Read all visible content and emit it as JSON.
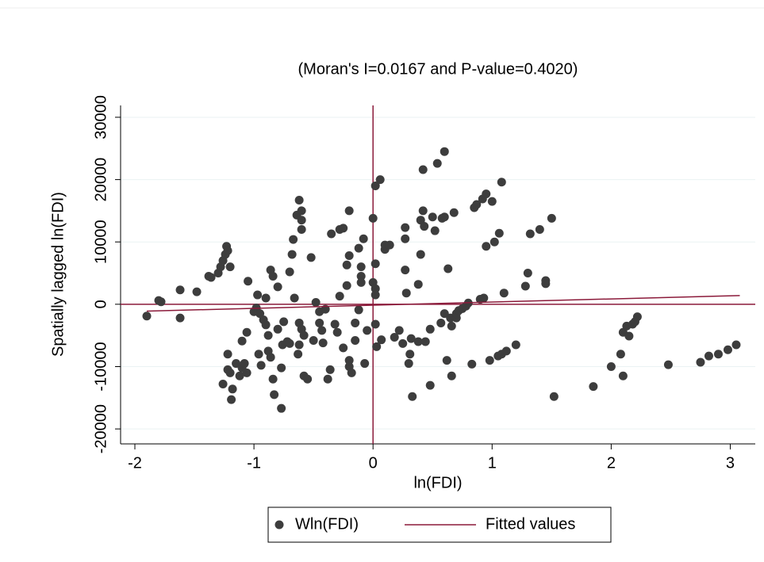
{
  "chart_data": {
    "type": "scatter",
    "title": "(Moran's I=0.0167 and P-value=0.4020)",
    "x_label": "ln(FDI)",
    "y_label": "Spatially lagged ln(FDI)",
    "xlim": [
      -2.12,
      3.21
    ],
    "ylim": [
      -22400,
      31900
    ],
    "xticks": [
      -2,
      -1,
      0,
      1,
      2,
      3
    ],
    "yticks": [
      -20000,
      -10000,
      0,
      10000,
      20000,
      30000
    ],
    "grid": true,
    "reference_lines": {
      "x": 0,
      "y": 0,
      "color": "#8b1a3a"
    },
    "legend": "bottom",
    "series": [
      {
        "name": "Wln(FDI)",
        "type": "scatter",
        "color": "#3d3d3d",
        "x": [
          -1.9,
          -1.8,
          -1.78,
          -1.62,
          -1.62,
          -1.48,
          -1.38,
          -1.36,
          -1.3,
          -1.28,
          -1.26,
          -1.24,
          -1.23,
          -1.22,
          -1.2,
          -1.22,
          -1.22,
          -1.2,
          -1.18,
          -1.19,
          -1.26,
          -1.15,
          -1.12,
          -1.1,
          -1.08,
          -1.06,
          -1.1,
          -1.06,
          -1.05,
          -1.0,
          -0.98,
          -0.96,
          -0.94,
          -0.97,
          -0.95,
          -0.92,
          -0.9,
          -0.9,
          -0.88,
          -0.88,
          -0.86,
          -0.86,
          -0.84,
          -0.84,
          -0.83,
          -0.8,
          -0.8,
          -0.77,
          -0.77,
          -0.76,
          -0.75,
          -0.72,
          -0.7,
          -0.7,
          -0.68,
          -0.67,
          -0.66,
          -0.64,
          -0.62,
          -0.6,
          -0.6,
          -0.6,
          -0.63,
          -0.62,
          -0.62,
          -0.6,
          -0.58,
          -0.58,
          -0.55,
          -0.52,
          -0.5,
          -0.48,
          -0.45,
          -0.45,
          -0.43,
          -0.42,
          -0.4,
          -0.38,
          -0.36,
          -0.35,
          -0.32,
          -0.3,
          -0.28,
          -0.25,
          -0.28,
          -0.25,
          -0.22,
          -0.2,
          -0.2,
          -0.18,
          -0.2,
          -0.15,
          -0.12,
          -0.1,
          -0.1,
          -0.1,
          -0.12,
          -0.15,
          -0.22,
          -0.2,
          -0.08,
          -0.07,
          -0.05,
          0.0,
          0.02,
          0.06,
          0.02,
          0.0,
          0.02,
          0.02,
          0.02,
          0.03,
          0.07,
          0.1,
          0.1,
          0.14,
          0.18,
          0.22,
          0.25,
          0.27,
          0.27,
          0.27,
          0.28,
          0.3,
          0.31,
          0.32,
          0.33,
          0.38,
          0.38,
          0.4,
          0.4,
          0.42,
          0.42,
          0.43,
          0.44,
          0.48,
          0.48,
          0.5,
          0.52,
          0.54,
          0.57,
          0.58,
          0.6,
          0.6,
          0.6,
          0.62,
          0.63,
          0.65,
          0.66,
          0.66,
          0.68,
          0.7,
          0.7,
          0.72,
          0.75,
          0.78,
          0.8,
          0.83,
          0.85,
          0.87,
          0.9,
          0.92,
          0.93,
          0.95,
          0.95,
          0.98,
          1.0,
          1.02,
          1.05,
          1.06,
          1.08,
          1.08,
          1.1,
          1.12,
          1.2,
          1.28,
          1.3,
          1.32,
          1.4,
          1.45,
          1.45,
          1.5,
          1.52,
          1.85,
          2.0,
          2.08,
          2.1,
          2.1,
          2.13,
          2.15,
          2.18,
          2.2,
          2.22,
          2.48,
          2.75,
          2.82,
          2.9,
          2.98,
          3.05
        ],
        "values": [
          -1900,
          600,
          400,
          2300,
          -2200,
          2000,
          4500,
          4300,
          5000,
          6000,
          7000,
          8000,
          9300,
          8600,
          6000,
          -8000,
          -10500,
          -11000,
          -13600,
          -15300,
          -12800,
          -9500,
          -11500,
          -10200,
          -9500,
          -11000,
          -5900,
          -4500,
          3700,
          -1200,
          -600,
          -8000,
          -9800,
          1500,
          -1500,
          -2500,
          1000,
          -3300,
          -5000,
          -7500,
          -8500,
          5500,
          4500,
          -12000,
          -14500,
          2800,
          -4000,
          -16700,
          -10200,
          -6500,
          -2800,
          -6000,
          -6300,
          5200,
          8000,
          10400,
          1000,
          14300,
          16700,
          15000,
          13500,
          12000,
          -8000,
          -6500,
          -3000,
          -4000,
          -5000,
          -11500,
          -12000,
          7500,
          -5800,
          300,
          -3000,
          -1200,
          -4200,
          -6200,
          -800,
          -12000,
          -10500,
          11300,
          -3200,
          -4500,
          12000,
          12200,
          1300,
          -7000,
          3000,
          15000,
          -10000,
          -11000,
          -9000,
          -3000,
          -900,
          4500,
          6000,
          3500,
          9000,
          -5800,
          6300,
          7800,
          10500,
          -9500,
          -4200,
          13800,
          19000,
          20000,
          6500,
          3500,
          2500,
          1500,
          -3200,
          -6800,
          -5700,
          8800,
          9500,
          9500,
          -5300,
          -4200,
          -6300,
          5500,
          10500,
          12300,
          1800,
          -9500,
          -8000,
          -5500,
          -14800,
          -6000,
          3200,
          8000,
          13500,
          15000,
          21600,
          12500,
          -6000,
          -13000,
          -4000,
          14000,
          11800,
          22600,
          -3000,
          13800,
          24500,
          14000,
          -1500,
          -9000,
          5700,
          -2200,
          -11500,
          -3500,
          14700,
          -2200,
          -1500,
          -1000,
          -700,
          -300,
          200,
          -9600,
          15500,
          16000,
          800,
          16900,
          1000,
          9300,
          17700,
          -9000,
          16500,
          10000,
          -8300,
          11400,
          19600,
          -8000,
          1800,
          -7500,
          -6500,
          2900,
          5000,
          11300,
          12000,
          3300,
          3800,
          13800,
          -14800,
          -13200,
          -10000,
          -8000,
          -11500,
          -4500,
          -3500,
          -5100,
          -3200,
          -2800,
          -2000,
          -9700,
          -9300,
          -8300,
          -8000,
          -7300,
          -6500
        ]
      },
      {
        "name": "Fitted values",
        "type": "line",
        "color": "#8b1a3a",
        "x": [
          -1.9,
          3.08
        ],
        "values": [
          -1100,
          1400
        ]
      }
    ]
  }
}
